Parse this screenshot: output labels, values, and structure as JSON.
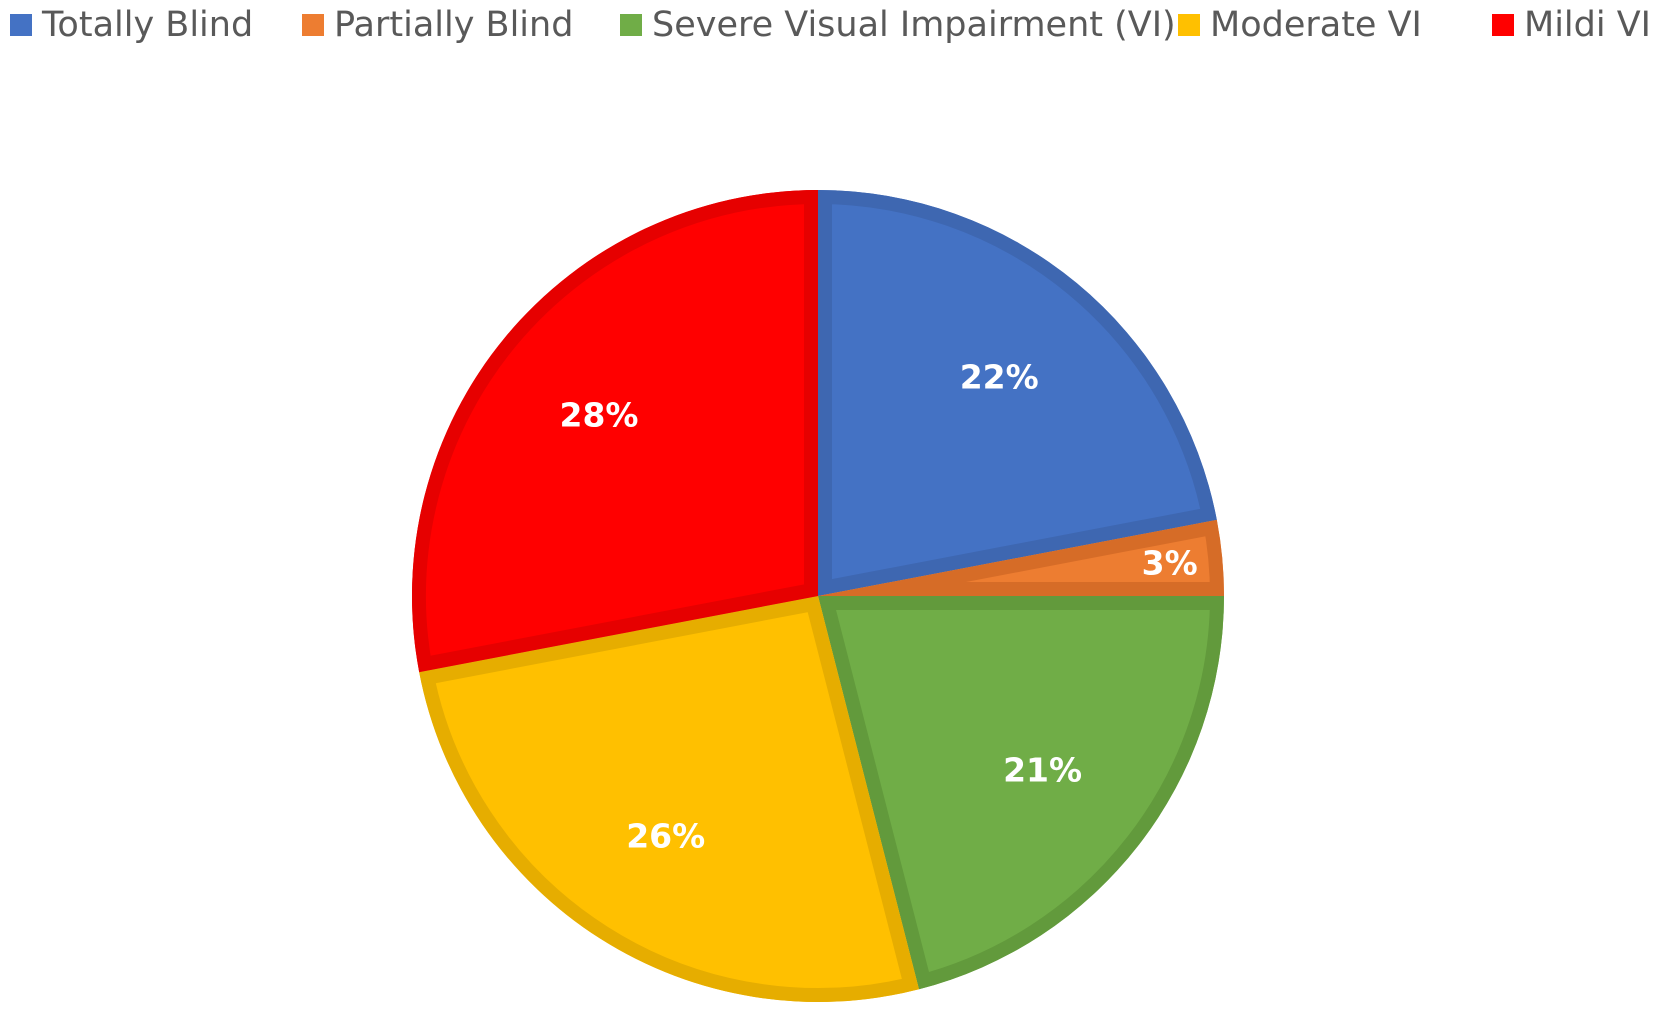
{
  "chart_data": {
    "type": "pie",
    "title": "",
    "legend_position": "top",
    "start_angle_deg": 0,
    "direction": "clockwise",
    "slices": [
      {
        "label": "Totally Blind",
        "value": 22,
        "data_label": "22%",
        "color": "#4472C4",
        "edge_color": "#3E67B1"
      },
      {
        "label": "Partially Blind",
        "value": 3,
        "data_label": "3%",
        "color": "#ED7D31",
        "edge_color": "#D66C27"
      },
      {
        "label": "Severe Visual Impairment (VI)",
        "value": 21,
        "data_label": "21%",
        "color": "#70AD47",
        "edge_color": "#629A3C"
      },
      {
        "label": "Moderate VI",
        "value": 26,
        "data_label": "26%",
        "color": "#FFC000",
        "edge_color": "#E6AD00"
      },
      {
        "label": "Mildi VI",
        "value": 28,
        "data_label": "28%",
        "color": "#FF0000",
        "edge_color": "#E60000"
      }
    ],
    "data_label_color": "#FFFFFF",
    "legend_text_color": "#595959"
  }
}
